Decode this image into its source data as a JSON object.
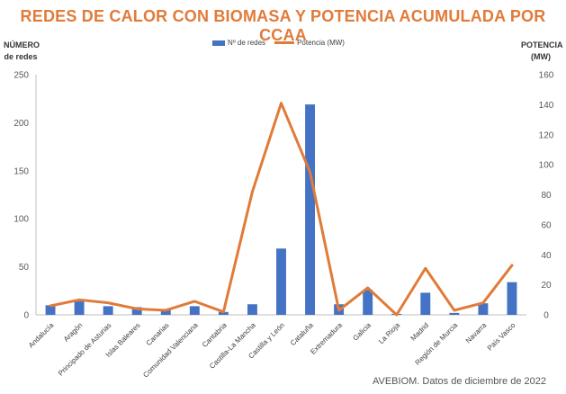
{
  "chart_data": {
    "type": "bar",
    "title": "REDES DE CALOR CON BIOMASA Y POTENCIA ACUMULADA POR CCAA",
    "ylabel": "NÚMERO de redes",
    "ylabel_lines": [
      "NÚMERO",
      "de redes"
    ],
    "y2label": "POTENCIA (MW)",
    "y2label_lines": [
      "POTENCIA",
      "(MW)"
    ],
    "ylim": [
      0,
      250
    ],
    "y2lim": [
      0,
      160
    ],
    "yticks": [
      "0",
      "50",
      "100",
      "150",
      "200",
      "250"
    ],
    "y2ticks": [
      "0",
      "20",
      "40",
      "60",
      "80",
      "100",
      "120",
      "140",
      "160"
    ],
    "grid": false,
    "legend_position": "top",
    "categories": [
      "Andalucía",
      "Aragón",
      "Principado de Asturias",
      "Islas Baleares",
      "Canarias",
      "Comunidad Valenciana",
      "Cantabria",
      "Castilla-La Mancha",
      "Castilla y León",
      "Cataluña",
      "Extremadura",
      "Galicia",
      "La Rioja",
      "Madrid",
      "Región de Murcia",
      "Navarra",
      "País Vasco"
    ],
    "series": [
      {
        "name": "Nº de redes",
        "type": "bar",
        "axis": "left",
        "color": "#4472c4",
        "values": [
          10,
          14,
          9,
          8,
          6,
          9,
          3,
          11,
          69,
          219,
          11,
          26,
          1,
          23,
          2,
          12,
          34
        ]
      },
      {
        "name": "Potencia (MW)",
        "type": "line",
        "axis": "right",
        "color": "#e07b39",
        "values": [
          6,
          10,
          8,
          4,
          3,
          9,
          2,
          82,
          141,
          95,
          3,
          18,
          0,
          31,
          3,
          8,
          33
        ]
      }
    ]
  },
  "source_note": "AVEBIOM. Datos de diciembre de 2022"
}
